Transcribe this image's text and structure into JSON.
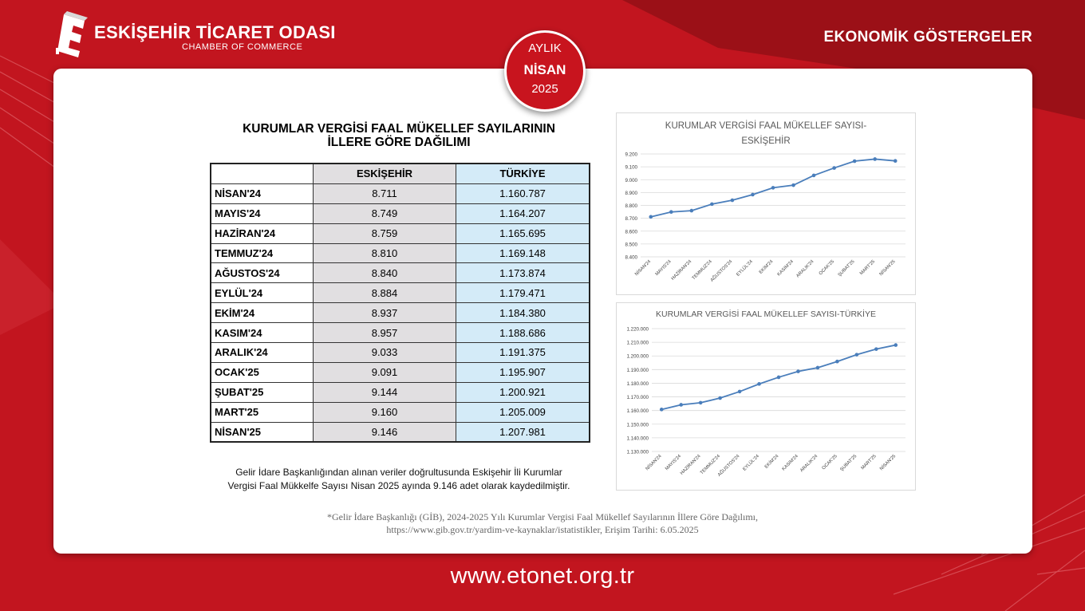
{
  "header": {
    "org_name": "ESKİŞEHİR TİCARET ODASI",
    "org_sub": "CHAMBER OF COMMERCE",
    "section_title": "EKONOMİK GÖSTERGELER"
  },
  "badge": {
    "line1": "AYLIK",
    "line2": "NİSAN",
    "line3": "2025"
  },
  "table": {
    "title_line1": "KURUMLAR VERGİSİ FAAL MÜKELLEF SAYILARININ",
    "title_line2": "İLLERE GÖRE DAĞILIMI",
    "col_eskisehir": "ESKİŞEHİR",
    "col_turkiye": "TÜRKİYE",
    "rows": [
      {
        "month": "NİSAN'24",
        "eskisehir": "8.711",
        "turkiye": "1.160.787"
      },
      {
        "month": "MAYIS'24",
        "eskisehir": "8.749",
        "turkiye": "1.164.207"
      },
      {
        "month": "HAZİRAN'24",
        "eskisehir": "8.759",
        "turkiye": "1.165.695"
      },
      {
        "month": "TEMMUZ'24",
        "eskisehir": "8.810",
        "turkiye": "1.169.148"
      },
      {
        "month": "AĞUSTOS'24",
        "eskisehir": "8.840",
        "turkiye": "1.173.874"
      },
      {
        "month": "EYLÜL'24",
        "eskisehir": "8.884",
        "turkiye": "1.179.471"
      },
      {
        "month": "EKİM'24",
        "eskisehir": "8.937",
        "turkiye": "1.184.380"
      },
      {
        "month": "KASIM'24",
        "eskisehir": "8.957",
        "turkiye": "1.188.686"
      },
      {
        "month": "ARALIK'24",
        "eskisehir": "9.033",
        "turkiye": "1.191.375"
      },
      {
        "month": "OCAK'25",
        "eskisehir": "9.091",
        "turkiye": "1.195.907"
      },
      {
        "month": "ŞUBAT'25",
        "eskisehir": "9.144",
        "turkiye": "1.200.921"
      },
      {
        "month": "MART'25",
        "eskisehir": "9.160",
        "turkiye": "1.205.009"
      },
      {
        "month": "NİSAN'25",
        "eskisehir": "9.146",
        "turkiye": "1.207.981"
      }
    ]
  },
  "note": {
    "line1": "Gelir İdare Başkanlığından alınan veriler doğrultusunda Eskişehir İli Kurumlar",
    "line2": "Vergisi Faal Mükkelfe Sayısı Nisan 2025 ayında 9.146 adet olarak kaydedilmiştir."
  },
  "source": {
    "line1": "*Gelir İdare Başkanlığı (GİB), 2024-2025 Yılı Kurumlar Vergisi Faal Mükellef Sayılarının İllere Göre Dağılımı,",
    "line2": "https://www.gib.gov.tr/yardim-ve-kaynaklar/istatistikler, Erişim Tarihi: 6.05.2025"
  },
  "footer": {
    "url": "www.etonet.org.tr"
  },
  "colors": {
    "brand_red": "#c2151f",
    "line_blue": "#4a7ebb",
    "eskisehir_col": "#e1dfe1",
    "turkiye_col": "#d4ebf8"
  },
  "chart_data": [
    {
      "type": "line",
      "title": "KURUMLAR VERGİSİ FAAL MÜKELLEF SAYISI-ESKİŞEHİR",
      "title_line1": "KURUMLAR VERGİSİ FAAL MÜKELLEF SAYISI-",
      "title_line2": "ESKİŞEHİR",
      "categories": [
        "NİSAN'24",
        "MAYIS'24",
        "HAZİRAN'24",
        "TEMMUZ'24",
        "AĞUSTOS'24",
        "EYLÜL'24",
        "EKİM'24",
        "KASIM'24",
        "ARALIK'24",
        "OCAK'25",
        "ŞUBAT'25",
        "MART'25",
        "NİSAN'25"
      ],
      "values": [
        8711,
        8749,
        8759,
        8810,
        8840,
        8884,
        8937,
        8957,
        9033,
        9091,
        9144,
        9160,
        9146
      ],
      "ylim": [
        8400,
        9200
      ],
      "yticks": [
        "9.200",
        "9.100",
        "9.000",
        "8.900",
        "8.800",
        "8.700",
        "8.600",
        "8.500",
        "8.400"
      ],
      "grid": true,
      "xlabel": "",
      "ylabel": ""
    },
    {
      "type": "line",
      "title": "KURUMLAR VERGİSİ FAAL MÜKELLEF SAYISI-TÜRKİYE",
      "categories": [
        "NİSAN'24",
        "MAYIS'24",
        "HAZİRAN'24",
        "TEMMUZ'24",
        "AĞUSTOS'24",
        "EYLÜL'24",
        "EKİM'24",
        "KASIM'24",
        "ARALIK'24",
        "OCAK'25",
        "ŞUBAT'25",
        "MART'25",
        "NİSAN'25"
      ],
      "values": [
        1160787,
        1164207,
        1165695,
        1169148,
        1173874,
        1179471,
        1184380,
        1188686,
        1191375,
        1195907,
        1200921,
        1205009,
        1207981
      ],
      "ylim": [
        1130000,
        1220000
      ],
      "yticks": [
        "1.220.000",
        "1.210.000",
        "1.200.000",
        "1.190.000",
        "1.180.000",
        "1.170.000",
        "1.160.000",
        "1.150.000",
        "1.140.000",
        "1.130.000"
      ],
      "grid": true,
      "xlabel": "",
      "ylabel": ""
    }
  ]
}
